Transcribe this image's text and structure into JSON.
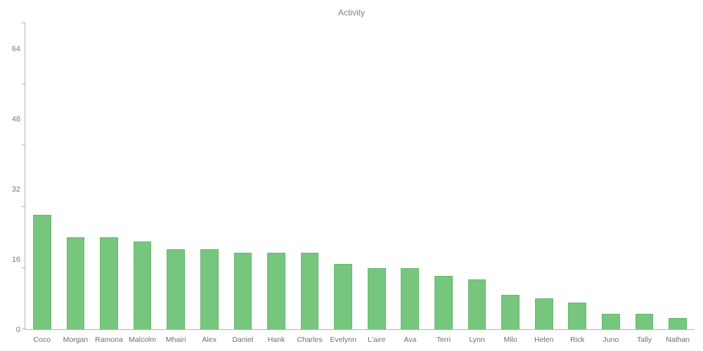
{
  "chart_data": {
    "type": "bar",
    "title": "Activity",
    "categories": [
      "Coco",
      "Morgan",
      "Ramona",
      "Malcolm",
      "Mhairi",
      "Alex",
      "Daniel",
      "Hank",
      "Charles",
      "Evelynn",
      "L'aire",
      "Ava",
      "Terri",
      "Lynn",
      "Milo",
      "Helen",
      "Rick",
      "Juno",
      "Tally",
      "Nathan"
    ],
    "values": [
      30,
      24,
      24,
      23,
      21,
      21,
      20,
      20,
      20,
      17,
      16,
      16,
      14,
      13,
      9,
      8,
      7,
      4,
      4,
      3
    ],
    "xlabel": "",
    "ylabel": "",
    "ylim": [
      0,
      80
    ],
    "yticks": [
      0,
      16,
      32,
      48,
      64,
      80
    ],
    "grid": false,
    "legend": false,
    "bar_color": "#77c67e",
    "bar_border_color": "#68b870",
    "axis_color": "#b3b3b3",
    "label_color": "#6e6e6e",
    "title_color": "#7f7f7f"
  }
}
